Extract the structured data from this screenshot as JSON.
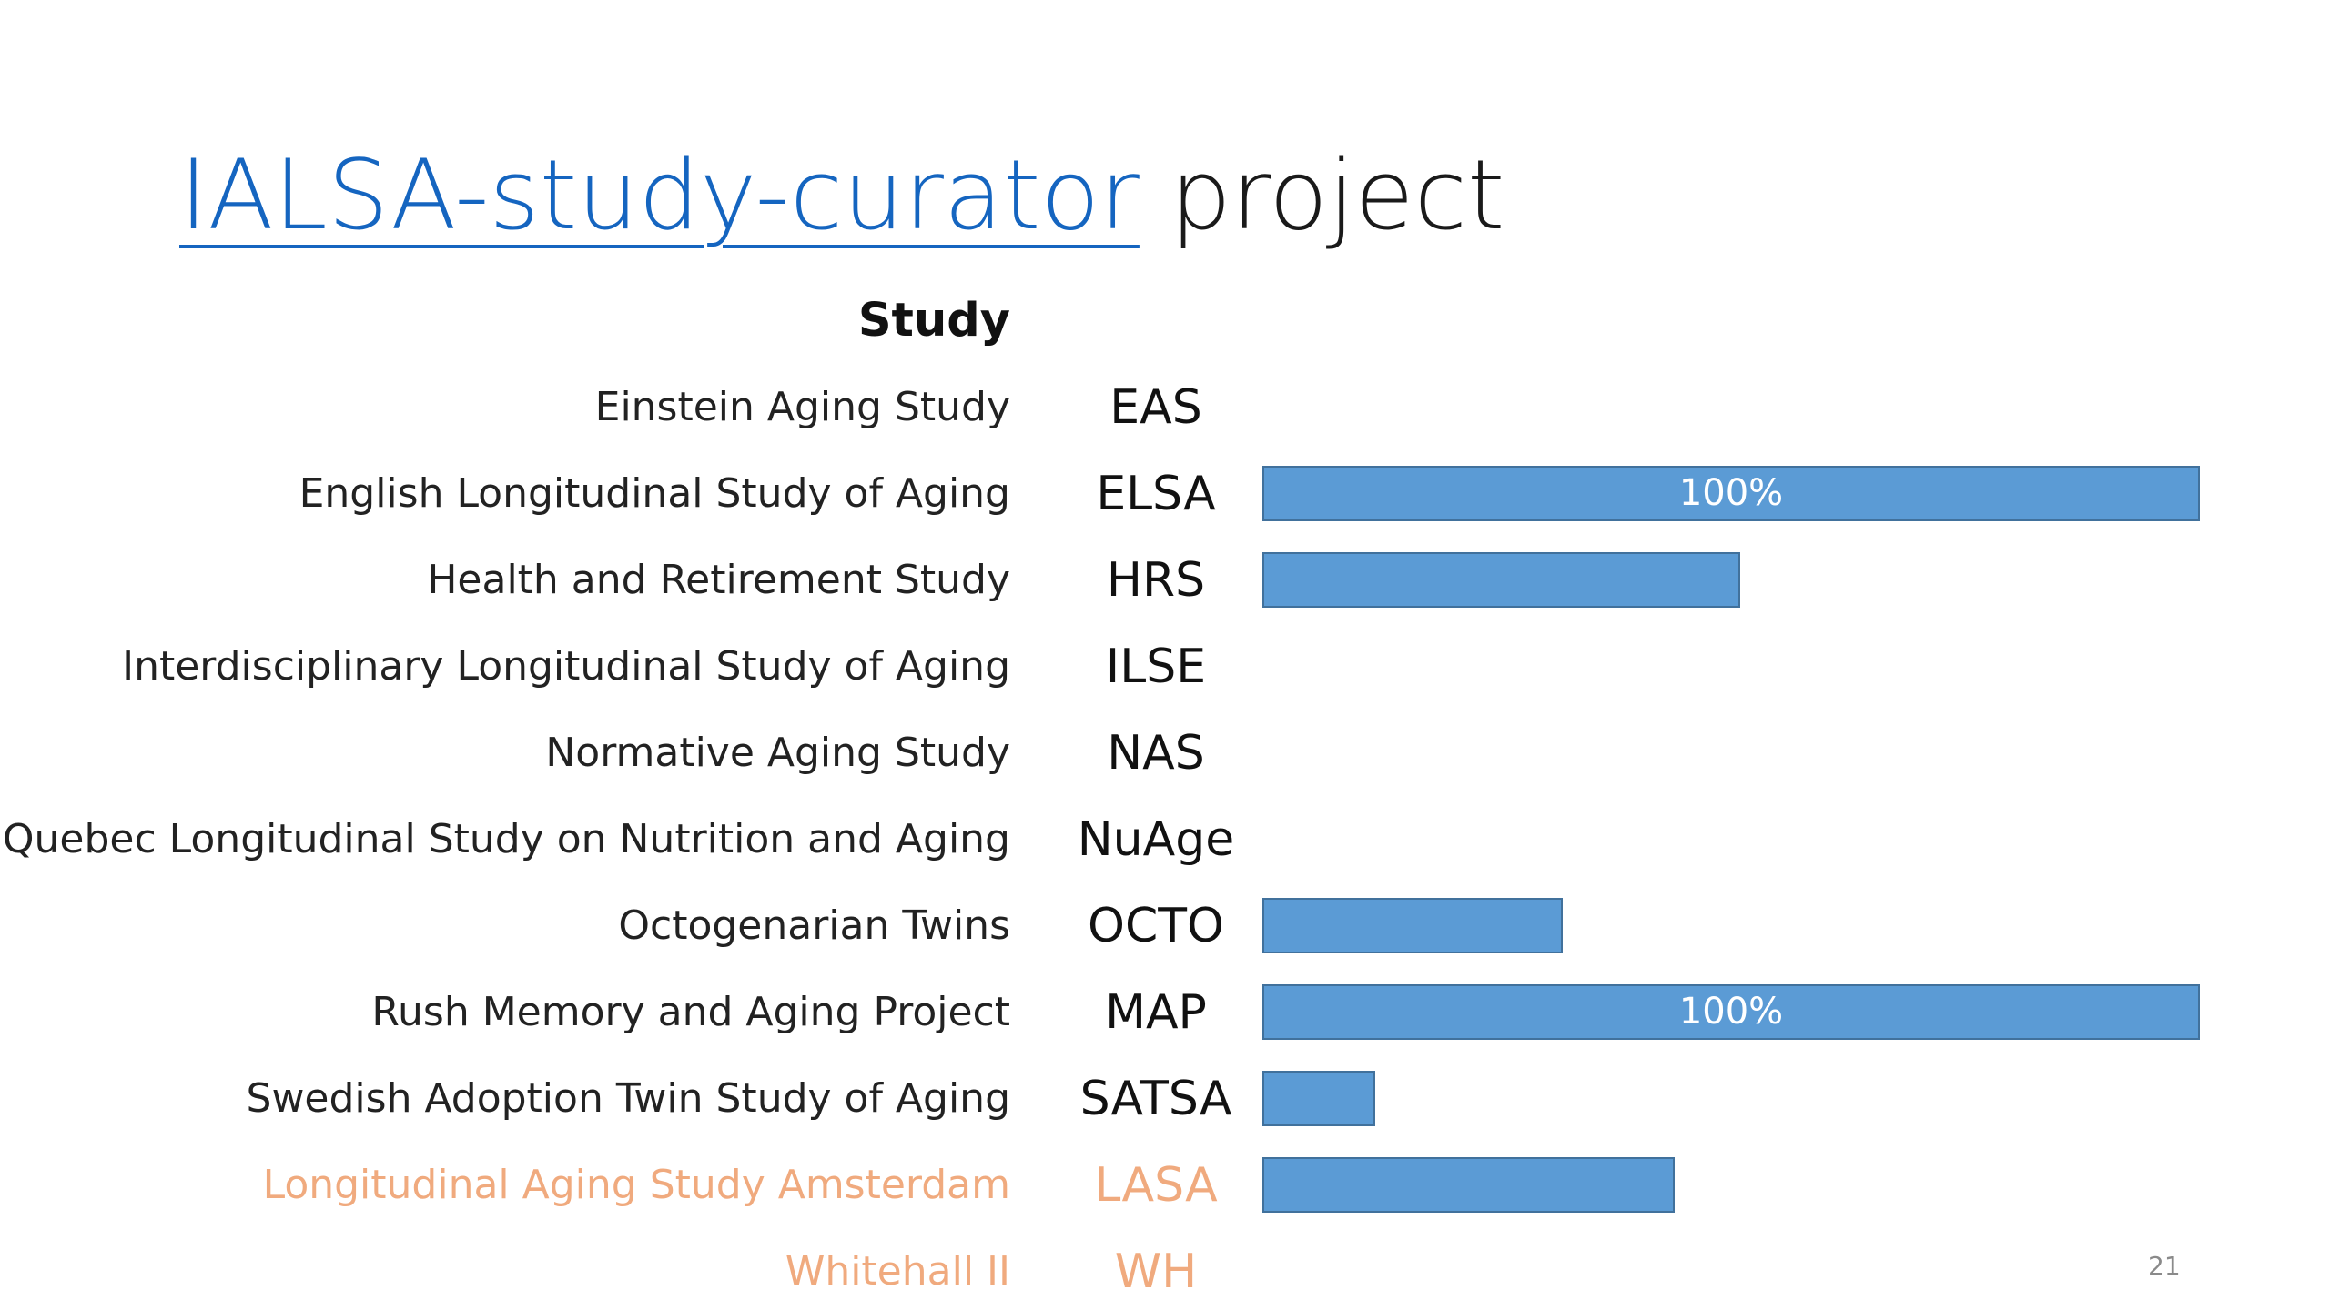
{
  "title": {
    "link_text": "IALSA-study-curator",
    "rest_text": " project"
  },
  "page_number": "21",
  "chart_data": {
    "type": "bar",
    "orientation": "horizontal",
    "header": "Study",
    "value_max": 100,
    "bar_color": "#5b9bd5",
    "bar_border_color": "#41719c",
    "faded_color": "#f0aa7e",
    "rows": [
      {
        "name": "Einstein Aging Study",
        "abbr": "EAS",
        "value": null,
        "label": "",
        "faded": false
      },
      {
        "name": "English Longitudinal Study of Aging",
        "abbr": "ELSA",
        "value": 100,
        "label": "100%",
        "faded": false
      },
      {
        "name": "Health and Retirement Study",
        "abbr": "HRS",
        "value": 51,
        "label": "",
        "faded": false
      },
      {
        "name": "Interdisciplinary Longitudinal Study of Aging",
        "abbr": "ILSE",
        "value": null,
        "label": "",
        "faded": false
      },
      {
        "name": "Normative Aging Study",
        "abbr": "NAS",
        "value": null,
        "label": "",
        "faded": false
      },
      {
        "name": "Quebec Longitudinal Study on Nutrition and Aging",
        "abbr": "NuAge",
        "value": null,
        "label": "",
        "faded": false
      },
      {
        "name": "Octogenarian Twins",
        "abbr": "OCTO",
        "value": 32,
        "label": "",
        "faded": false
      },
      {
        "name": "Rush Memory and Aging Project",
        "abbr": "MAP",
        "value": 100,
        "label": "100%",
        "faded": false
      },
      {
        "name": "Swedish Adoption Twin Study of Aging",
        "abbr": "SATSA",
        "value": 12,
        "label": "",
        "faded": false
      },
      {
        "name": "Longitudinal Aging Study Amsterdam",
        "abbr": "LASA",
        "value": 44,
        "label": "",
        "faded": true
      },
      {
        "name": "Whitehall II",
        "abbr": "WH",
        "value": null,
        "label": "",
        "faded": true
      }
    ]
  }
}
